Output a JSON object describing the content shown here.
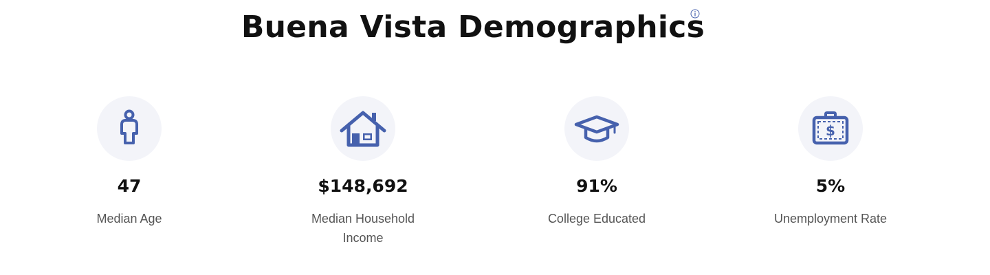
{
  "page": {
    "title": "Buena Vista Demographics"
  },
  "colors": {
    "icon_accent": "#4661ad",
    "icon_background": "#f3f4f9"
  },
  "stats": [
    {
      "icon": "person-icon",
      "value": "47",
      "label": "Median Age"
    },
    {
      "icon": "house-icon",
      "value": "$148,692",
      "label": "Median Household Income"
    },
    {
      "icon": "graduation-cap-icon",
      "value": "91%",
      "label": "College Educated"
    },
    {
      "icon": "briefcase-dollar-icon",
      "value": "5%",
      "label": "Unemployment Rate"
    }
  ]
}
